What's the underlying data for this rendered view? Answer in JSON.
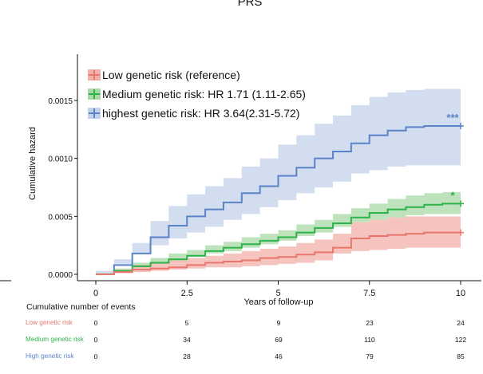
{
  "chart_data": {
    "type": "line",
    "title": "PRS",
    "xlabel": "Years of  follow-up",
    "ylabel": "Cumulative hazard",
    "xlim": [
      0,
      10
    ],
    "ylim": [
      -2e-05,
      0.0019
    ],
    "xticks": [
      0,
      2.5,
      5,
      7.5,
      10
    ],
    "xtick_labels": [
      "0",
      "2.5",
      "5",
      "7.5",
      "10"
    ],
    "yticks": [
      0.0,
      0.0005,
      0.001,
      0.0015
    ],
    "ytick_labels": [
      "0.0000",
      "0.0005",
      "0.0010",
      "0.0015"
    ],
    "legend_position": "top-left",
    "series": [
      {
        "name": "Low genetic risk (reference)",
        "color": "#e8766e",
        "band_color": "#f3b0a8",
        "annotation": "",
        "x": [
          0,
          0.5,
          1,
          1.5,
          2,
          2.5,
          3,
          3.5,
          4,
          4.5,
          5,
          5.5,
          6,
          6.5,
          7,
          7.5,
          8,
          8.5,
          9,
          9.5,
          10
        ],
        "y": [
          0,
          2e-05,
          4e-05,
          5e-05,
          6e-05,
          8e-05,
          0.0001,
          0.00011,
          0.00012,
          0.00014,
          0.00015,
          0.00017,
          0.00019,
          0.00023,
          0.00031,
          0.00033,
          0.00034,
          0.00035,
          0.00036,
          0.00036,
          0.00036
        ],
        "lower": [
          0,
          0.0,
          1e-05,
          2e-05,
          3e-05,
          4e-05,
          5e-05,
          6e-05,
          6e-05,
          7e-05,
          8e-05,
          9e-05,
          0.0001,
          0.00012,
          0.00018,
          0.0002,
          0.00021,
          0.00022,
          0.00023,
          0.00023,
          0.00023
        ],
        "upper": [
          0,
          4e-05,
          8e-05,
          0.0001,
          0.00012,
          0.00014,
          0.00016,
          0.00018,
          0.0002,
          0.00022,
          0.00024,
          0.00027,
          0.0003,
          0.00035,
          0.00045,
          0.00047,
          0.00049,
          0.0005,
          0.0005,
          0.0005,
          0.0005
        ]
      },
      {
        "name": "Medium genetic risk: HR 1.71 (1.11-2.65)",
        "color": "#2db34a",
        "band_color": "#a8d9a6",
        "annotation": "*",
        "x": [
          0,
          0.5,
          1,
          1.5,
          2,
          2.5,
          3,
          3.5,
          4,
          4.5,
          5,
          5.5,
          6,
          6.5,
          7,
          7.5,
          8,
          8.5,
          9,
          9.5,
          10
        ],
        "y": [
          0,
          3e-05,
          7e-05,
          0.0001,
          0.00013,
          0.00016,
          0.0002,
          0.00023,
          0.00026,
          0.00029,
          0.00032,
          0.00036,
          0.0004,
          0.00044,
          0.00049,
          0.00053,
          0.00056,
          0.00058,
          0.0006,
          0.00061,
          0.00061
        ],
        "lower": [
          0,
          1e-05,
          4e-05,
          6e-05,
          9e-05,
          0.00011,
          0.00015,
          0.00018,
          0.0002,
          0.00023,
          0.00026,
          0.00029,
          0.00033,
          0.00036,
          0.00041,
          0.00045,
          0.00047,
          0.00049,
          0.00051,
          0.00052,
          0.00052
        ],
        "upper": [
          0,
          5e-05,
          0.0001,
          0.00014,
          0.00018,
          0.00021,
          0.00025,
          0.00028,
          0.00032,
          0.00035,
          0.00038,
          0.00043,
          0.00047,
          0.00052,
          0.00057,
          0.00061,
          0.00065,
          0.00068,
          0.0007,
          0.00071,
          0.00071
        ]
      },
      {
        "name": "highest genetic risk: HR 3.64(2.31-5.72)",
        "color": "#5b83c7",
        "band_color": "#c3d2ea",
        "annotation": "***",
        "x": [
          0,
          0.5,
          1,
          1.5,
          2,
          2.5,
          3,
          3.5,
          4,
          4.5,
          5,
          5.5,
          6,
          6.5,
          7,
          7.5,
          8,
          8.5,
          9,
          9.5,
          10
        ],
        "y": [
          0,
          8e-05,
          0.00018,
          0.00032,
          0.00042,
          0.0005,
          0.00056,
          0.00062,
          0.0007,
          0.00076,
          0.00085,
          0.00092,
          0.001,
          0.00106,
          0.00113,
          0.0012,
          0.00124,
          0.00127,
          0.00128,
          0.00128,
          0.00128
        ],
        "lower": [
          0,
          3e-05,
          9e-05,
          0.00018,
          0.00025,
          0.00031,
          0.00036,
          0.00041,
          0.00047,
          0.00052,
          0.00058,
          0.00064,
          0.0007,
          0.00075,
          0.0008,
          0.00087,
          0.0009,
          0.00093,
          0.00094,
          0.00094,
          0.00094
        ],
        "upper": [
          0,
          0.00013,
          0.00027,
          0.00046,
          0.00059,
          0.00069,
          0.00076,
          0.00083,
          0.00093,
          0.001,
          0.00112,
          0.0012,
          0.0013,
          0.00137,
          0.00146,
          0.00153,
          0.00157,
          0.00159,
          0.0016,
          0.0016,
          0.0016
        ]
      }
    ]
  },
  "risk_table": {
    "title": "Cumulative number of events",
    "time_points": [
      0,
      2.5,
      5,
      7.5,
      10
    ],
    "rows": [
      {
        "label": "Low genetic risk",
        "color": "#e8766e",
        "values": [
          "0",
          "5",
          "9",
          "23",
          "24"
        ]
      },
      {
        "label": "Medium genetic risk",
        "color": "#2db34a",
        "values": [
          "0",
          "34",
          "69",
          "110",
          "122"
        ]
      },
      {
        "label": "High genetic risk",
        "color": "#5b83c7",
        "values": [
          "0",
          "28",
          "46",
          "79",
          "85"
        ]
      }
    ]
  }
}
